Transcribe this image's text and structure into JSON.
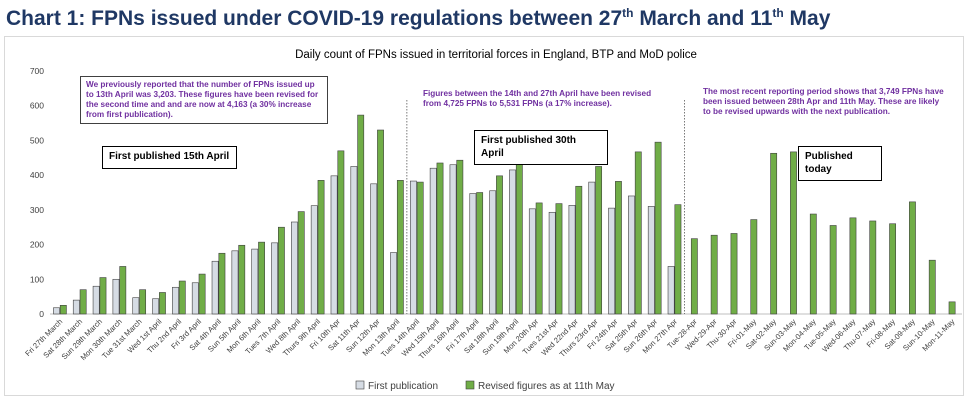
{
  "heading": {
    "prefix": "Chart 1: FPNs issued under COVID-19 regulations between 27",
    "sup1": "th",
    "middle": " March and 11",
    "sup2": "th",
    "suffix": " May"
  },
  "colors": {
    "first": "#d6dce4",
    "revised": "#70ad47",
    "edge": "#404040",
    "note": "#7030a0",
    "grid": "#d9d9d9"
  },
  "annotations": {
    "note1": "We previously reported that the number of FPNs issued up to 13th April was 3,203. These figures have been revised for the second time and and are now at 4,163 (a 30% increase from first publication).",
    "note2": "Figures between the 14th and 27th April have been revised from 4,725 FPNs to 5,531 FPNs (a 17% increase).",
    "note3": "The most recent reporting period shows that 3,749 FPNs have been issued between 28th Apr and 11th May. These are likely to be revised upwards with the next publication.",
    "box1": "First published 15th April",
    "box2": "First published 30th April",
    "box3": "Published today"
  },
  "chart_data": {
    "type": "bar",
    "title": "Daily count of FPNs issued in territorial forces in England, BTP and MoD police",
    "xlabel": "",
    "ylabel": "",
    "ylim": [
      0,
      700
    ],
    "yticks": [
      0,
      100,
      200,
      300,
      400,
      500,
      600,
      700
    ],
    "grid": false,
    "legend": "bottom",
    "categories": [
      "Fri 27th March",
      "Sat 28th March",
      "Sun 29th March",
      "Mon 30th March",
      "Tue 31st March",
      "Wed 1st April",
      "Thu 2nd April",
      "Fri 3rd April",
      "Sat 4th April",
      "Sun 5th April",
      "Mon 6th April",
      "Tues 7th April",
      "Wed 8th April",
      "Thurs 9th April",
      "Fri 10th Apr",
      "Sat 11th Apr",
      "Sun 12th Apr",
      "Mon 13th April",
      "Tues 14th April",
      "Wed 15th April",
      "Thurs 16th April",
      "Fri 17th April",
      "Sat 18th April",
      "Sun 19th April",
      "Mon 20th Apr",
      "Tues 21st Apr",
      "Wed 22nd Apr",
      "Thurs 23rd Apr",
      "Fri 24th Apr",
      "Sat 25th Apr",
      "Sun 26th Apr",
      "Mon 27th Apr",
      "Tue-28-Apr",
      "Wed-29-Apr",
      "Thu-30-Apr",
      "Fri-01-May",
      "Sat-02-May",
      "Sun-03-May",
      "Mon-04-May",
      "Tue-05-May",
      "Wed-06-May",
      "Thu-07-May",
      "Fri-08-May",
      "Sat-09-May",
      "Sun-10-May",
      "Mon-11-May"
    ],
    "series": [
      {
        "name": "First publication",
        "values": [
          18,
          40,
          80,
          100,
          47,
          44,
          77,
          90,
          152,
          182,
          187,
          205,
          265,
          312,
          398,
          425,
          375,
          177,
          383,
          420,
          430,
          347,
          355,
          415,
          303,
          293,
          313,
          380,
          305,
          340,
          310,
          137,
          null,
          null,
          null,
          null,
          null,
          null,
          null,
          null,
          null,
          null,
          null,
          null,
          null,
          null
        ]
      },
      {
        "name": "Revised figures as at 11th May",
        "values": [
          25,
          70,
          105,
          137,
          70,
          62,
          95,
          115,
          175,
          198,
          207,
          250,
          295,
          385,
          470,
          573,
          530,
          385,
          380,
          435,
          443,
          350,
          398,
          437,
          320,
          318,
          368,
          425,
          382,
          467,
          495,
          315,
          217,
          227,
          232,
          272,
          463,
          467,
          288,
          255,
          277,
          268,
          260,
          323,
          155,
          35
        ]
      }
    ]
  }
}
